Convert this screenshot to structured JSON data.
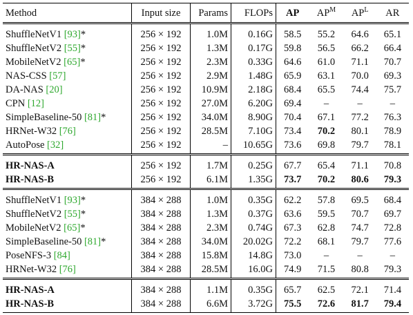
{
  "table": {
    "header": [
      {
        "text": "Method"
      },
      {
        "text": "Input size"
      },
      {
        "text": "Params"
      },
      {
        "text": "FLOPs"
      },
      {
        "text": "AP",
        "bold": true
      },
      {
        "text": "AP",
        "sup": "M"
      },
      {
        "text": "AP",
        "sup": "L"
      },
      {
        "text": "AR"
      }
    ],
    "groups": [
      {
        "rows": [
          {
            "method": {
              "name": "ShuffleNetV1",
              "cite": "[93]",
              "suffix": "*"
            },
            "cells": [
              "256 × 192",
              "1.0M",
              "0.16G",
              "58.5",
              "55.2",
              "64.6",
              "65.1"
            ],
            "bold": []
          },
          {
            "method": {
              "name": "ShuffleNetV2",
              "cite": "[55]",
              "suffix": "*"
            },
            "cells": [
              "256 × 192",
              "1.3M",
              "0.17G",
              "59.8",
              "56.5",
              "66.2",
              "66.4"
            ],
            "bold": []
          },
          {
            "method": {
              "name": "MobileNetV2",
              "cite": "[65]",
              "suffix": "*"
            },
            "cells": [
              "256 × 192",
              "2.3M",
              "0.33G",
              "64.6",
              "61.0",
              "71.1",
              "70.7"
            ],
            "bold": []
          },
          {
            "method": {
              "name": "NAS-CSS",
              "cite": "[57]"
            },
            "cells": [
              "256 × 192",
              "2.9M",
              "1.48G",
              "65.9",
              "63.1",
              "70.0",
              "69.3"
            ],
            "bold": []
          },
          {
            "method": {
              "name": "DA-NAS",
              "cite": "[20]"
            },
            "cells": [
              "256 × 192",
              "10.9M",
              "2.18G",
              "68.4",
              "65.5",
              "74.4",
              "75.7"
            ],
            "bold": []
          },
          {
            "method": {
              "name": "CPN",
              "cite": "[12]"
            },
            "cells": [
              "256 × 192",
              "27.0M",
              "6.20G",
              "69.4",
              "–",
              "–",
              "–"
            ],
            "bold": []
          },
          {
            "method": {
              "name": "SimpleBaseline-50",
              "cite": "[81]",
              "suffix": "*"
            },
            "cells": [
              "256 × 192",
              "34.0M",
              "8.90G",
              "70.4",
              "67.1",
              "77.2",
              "76.3"
            ],
            "bold": []
          },
          {
            "method": {
              "name": "HRNet-W32",
              "cite": "[76]"
            },
            "cells": [
              "256 × 192",
              "28.5M",
              "7.10G",
              "73.4",
              "70.2",
              "80.1",
              "78.9"
            ],
            "bold": [
              4
            ]
          },
          {
            "method": {
              "name": "AutoPose",
              "cite": "[32]"
            },
            "cells": [
              "256 × 192",
              "–",
              "10.65G",
              "73.6",
              "69.8",
              "79.7",
              "78.1"
            ],
            "bold": []
          }
        ]
      },
      {
        "rows": [
          {
            "method": {
              "name": "HR-NAS-A",
              "bold": true
            },
            "cells": [
              "256 × 192",
              "1.7M",
              "0.25G",
              "67.7",
              "65.4",
              "71.1",
              "70.8"
            ],
            "bold": []
          },
          {
            "method": {
              "name": "HR-NAS-B",
              "bold": true
            },
            "cells": [
              "256 × 192",
              "6.1M",
              "1.35G",
              "73.7",
              "70.2",
              "80.6",
              "79.3"
            ],
            "bold": [
              3,
              4,
              5,
              6
            ]
          }
        ]
      },
      {
        "rows": [
          {
            "method": {
              "name": "ShuffleNetV1",
              "cite": "[93]",
              "suffix": "*"
            },
            "cells": [
              "384 × 288",
              "1.0M",
              "0.35G",
              "62.2",
              "57.8",
              "69.5",
              "68.4"
            ],
            "bold": []
          },
          {
            "method": {
              "name": "ShuffleNetV2",
              "cite": "[55]",
              "suffix": "*"
            },
            "cells": [
              "384 × 288",
              "1.3M",
              "0.37G",
              "63.6",
              "59.5",
              "70.7",
              "69.7"
            ],
            "bold": []
          },
          {
            "method": {
              "name": "MobileNetV2",
              "cite": "[65]",
              "suffix": "*"
            },
            "cells": [
              "384 × 288",
              "2.3M",
              "0.74G",
              "67.3",
              "62.8",
              "74.7",
              "72.8"
            ],
            "bold": []
          },
          {
            "method": {
              "name": "SimpleBaseline-50",
              "cite": "[81]",
              "suffix": "*"
            },
            "cells": [
              "384 × 288",
              "34.0M",
              "20.02G",
              "72.2",
              "68.1",
              "79.7",
              "77.6"
            ],
            "bold": []
          },
          {
            "method": {
              "name": "PoseNFS-3",
              "cite": "[84]"
            },
            "cells": [
              "384 × 288",
              "15.8M",
              "14.8G",
              "73.0",
              "–",
              "–",
              "–"
            ],
            "bold": []
          },
          {
            "method": {
              "name": "HRNet-W32",
              "cite": "[76]"
            },
            "cells": [
              "384 × 288",
              "28.5M",
              "16.0G",
              "74.9",
              "71.5",
              "80.8",
              "79.3"
            ],
            "bold": []
          }
        ]
      },
      {
        "rows": [
          {
            "method": {
              "name": "HR-NAS-A",
              "bold": true
            },
            "cells": [
              "384 × 288",
              "1.1M",
              "0.35G",
              "65.7",
              "62.5",
              "72.1",
              "71.4"
            ],
            "bold": []
          },
          {
            "method": {
              "name": "HR-NAS-B",
              "bold": true
            },
            "cells": [
              "384 × 288",
              "6.6M",
              "3.72G",
              "75.5",
              "72.6",
              "81.7",
              "79.4"
            ],
            "bold": [
              3,
              4,
              5,
              6
            ]
          }
        ]
      }
    ]
  }
}
